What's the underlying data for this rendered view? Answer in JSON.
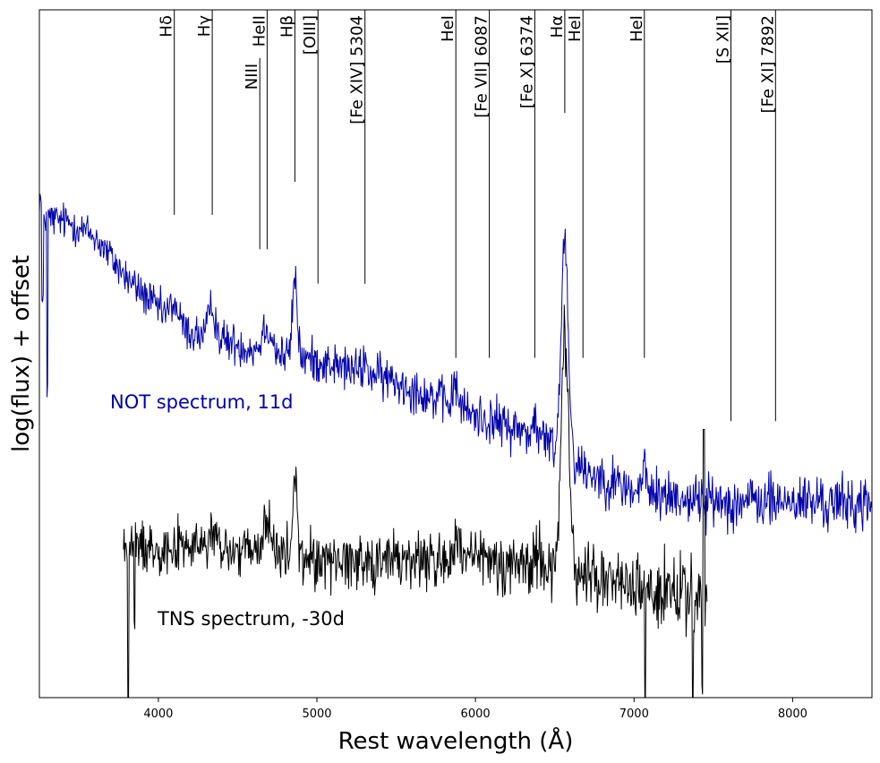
{
  "chart_data": {
    "type": "line",
    "title": "",
    "xlabel": "Rest wavelength (Å)",
    "ylabel": "log(flux) + offset",
    "xlim": [
      3250,
      8500
    ],
    "ylim": [
      0,
      100
    ],
    "y_ticks_shown": false,
    "grid": false,
    "x_ticks": [
      4000,
      5000,
      6000,
      7000,
      8000
    ],
    "x_tick_labels": [
      "4000",
      "5000",
      "6000",
      "7000",
      "8000"
    ],
    "series": [
      {
        "name": "NOT spectrum, 11d",
        "label": "NOT spectrum, 11d",
        "color": "#0000aa",
        "x_start": 3250,
        "x_end": 8500,
        "continuum": [
          [
            3250,
            70
          ],
          [
            3450,
            69
          ],
          [
            3600,
            67
          ],
          [
            3800,
            61
          ],
          [
            4000,
            56.5
          ],
          [
            4200,
            53
          ],
          [
            4400,
            52
          ],
          [
            4700,
            50
          ],
          [
            5000,
            49
          ],
          [
            5500,
            46
          ],
          [
            6000,
            41
          ],
          [
            6400,
            38
          ],
          [
            6700,
            33
          ],
          [
            7000,
            30
          ],
          [
            7500,
            28.5
          ],
          [
            8000,
            28.5
          ],
          [
            8500,
            28
          ]
        ],
        "lines": [
          [
            3250,
            3,
            12
          ],
          [
            4100,
            2.5,
            25
          ],
          [
            4340,
            4.5,
            22
          ],
          [
            4686,
            4,
            30
          ],
          [
            4861,
            11.5,
            15
          ],
          [
            5303,
            1.5,
            15
          ],
          [
            5876,
            3,
            18
          ],
          [
            6374,
            2,
            12
          ],
          [
            6563,
            32,
            22
          ],
          [
            7065,
            4,
            12
          ]
        ],
        "noise_start": 3,
        "noise_end": 4.5,
        "dips": [
          [
            3270,
            14
          ],
          [
            3300,
            25
          ]
        ]
      },
      {
        "name": "TNS spectrum, -30d",
        "label": "TNS spectrum, -30d",
        "color": "#000000",
        "x_start": 3780,
        "x_end": 7460,
        "continuum": [
          [
            3780,
            22
          ],
          [
            4200,
            22
          ],
          [
            5000,
            20
          ],
          [
            6000,
            20
          ],
          [
            6500,
            19
          ],
          [
            7000,
            16
          ],
          [
            7460,
            14
          ]
        ],
        "lines": [
          [
            4340,
            3,
            15
          ],
          [
            4686,
            6,
            20
          ],
          [
            4861,
            12,
            13
          ],
          [
            5876,
            2,
            15
          ],
          [
            6400,
            3,
            12
          ],
          [
            6563,
            33,
            24
          ]
        ],
        "noise_start": 4,
        "noise_end": 6,
        "dips": [
          [
            3810,
            25
          ],
          [
            3850,
            12
          ],
          [
            7070,
            25
          ],
          [
            7370,
            24
          ],
          [
            7430,
            15
          ]
        ],
        "spikes": [
          [
            7440,
            39
          ]
        ]
      }
    ],
    "annotations": [
      {
        "label": "Hδ",
        "wavelength": 4101,
        "line_bottom": 70.2
      },
      {
        "label": "Hγ",
        "wavelength": 4340,
        "line_bottom": 70.2
      },
      {
        "label": "HeII",
        "wavelength": 4686,
        "line_bottom": 65.2
      },
      {
        "label": "NIII",
        "wavelength": 4640,
        "line_bottom": 65.2,
        "line_top": 93,
        "label_low": true
      },
      {
        "label": "Hβ",
        "wavelength": 4861,
        "line_bottom": 75
      },
      {
        "label": "[OIII]",
        "wavelength": 5007,
        "line_bottom": 60.2
      },
      {
        "label": "[Fe XIV] 5304",
        "wavelength": 5303,
        "line_bottom": 60.2
      },
      {
        "label": "HeI",
        "wavelength": 5876,
        "line_bottom": 49.4
      },
      {
        "label": "[Fe VII] 6087",
        "wavelength": 6087,
        "line_bottom": 49.4
      },
      {
        "label": "[Fe X] 6374",
        "wavelength": 6374,
        "line_bottom": 49.4
      },
      {
        "label": "Hα",
        "wavelength": 6563,
        "line_bottom": 85
      },
      {
        "label": "HeI",
        "wavelength": 6678,
        "line_bottom": 49.4
      },
      {
        "label": "HeI",
        "wavelength": 7065,
        "line_bottom": 49.4
      },
      {
        "label": "[S XII]",
        "wavelength": 7611,
        "line_bottom": 40.2
      },
      {
        "label": "[Fe XI] 7892",
        "wavelength": 7892,
        "line_bottom": 40.2
      }
    ]
  }
}
